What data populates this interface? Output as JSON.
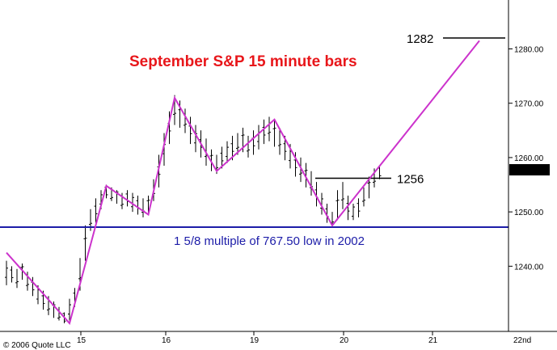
{
  "chart_data": {
    "type": "ohlc",
    "title": "September S&P 15 minute bars",
    "title_color": "#e8161a",
    "copyright": "© 2006 Quote LLC",
    "ylim": [
      1228,
      1289
    ],
    "y_ticks": [
      1240.0,
      1250.0,
      1260.0,
      1270.0,
      1280.0
    ],
    "y_tick_labels": [
      "1240.00",
      "1250.00",
      "1260.00",
      "1270.00",
      "1280.00"
    ],
    "x_tick_labels": [
      "15",
      "16",
      "19",
      "20",
      "21",
      "22nd"
    ],
    "last_price": "1257.75",
    "last_price_value": 1257.75,
    "support_line": {
      "value": 1247.2,
      "label": "1 5/8 multiple of 767.50 low in 2002",
      "color": "#1c1ca8"
    },
    "levels": [
      {
        "label": "1256",
        "value": 1256.2
      },
      {
        "label": "1282",
        "value": 1282.0
      }
    ],
    "wave_color": "#cc33cc",
    "wave_points": [
      [
        0,
        1242.5
      ],
      [
        12,
        1229.5
      ],
      [
        19,
        1254.8
      ],
      [
        27,
        1249.5
      ],
      [
        32,
        1271.0
      ],
      [
        40,
        1257.5
      ],
      [
        51,
        1267.0
      ],
      [
        62,
        1247.5
      ],
      [
        69,
        1256.0
      ],
      [
        90,
        1281.5
      ]
    ],
    "bars": [
      [
        1241.0,
        1236.5
      ],
      [
        1240.0,
        1237.0
      ],
      [
        1239.5,
        1236.0
      ],
      [
        1240.5,
        1237.5
      ],
      [
        1239.0,
        1235.5
      ],
      [
        1238.0,
        1234.5
      ],
      [
        1236.5,
        1233.0
      ],
      [
        1235.5,
        1232.0
      ],
      [
        1234.5,
        1231.0
      ],
      [
        1233.5,
        1230.5
      ],
      [
        1232.5,
        1230.0
      ],
      [
        1231.5,
        1229.5
      ],
      [
        1234.0,
        1230.0
      ],
      [
        1236.0,
        1232.5
      ],
      [
        1241.5,
        1235.5
      ],
      [
        1247.5,
        1241.0
      ],
      [
        1250.5,
        1246.5
      ],
      [
        1252.5,
        1248.0
      ],
      [
        1254.0,
        1250.5
      ],
      [
        1255.0,
        1252.5
      ],
      [
        1254.5,
        1252.0
      ],
      [
        1254.0,
        1251.5
      ],
      [
        1253.5,
        1250.5
      ],
      [
        1254.0,
        1251.0
      ],
      [
        1253.5,
        1250.0
      ],
      [
        1253.0,
        1249.5
      ],
      [
        1252.5,
        1249.0
      ],
      [
        1253.0,
        1249.5
      ],
      [
        1256.0,
        1252.0
      ],
      [
        1260.5,
        1254.5
      ],
      [
        1264.5,
        1258.5
      ],
      [
        1268.5,
        1262.5
      ],
      [
        1271.5,
        1266.0
      ],
      [
        1270.5,
        1265.5
      ],
      [
        1269.0,
        1264.5
      ],
      [
        1267.5,
        1262.5
      ],
      [
        1266.0,
        1261.0
      ],
      [
        1265.0,
        1260.0
      ],
      [
        1263.5,
        1258.5
      ],
      [
        1261.5,
        1257.5
      ],
      [
        1260.5,
        1257.0
      ],
      [
        1262.0,
        1258.0
      ],
      [
        1263.0,
        1259.0
      ],
      [
        1264.0,
        1259.5
      ],
      [
        1264.5,
        1260.5
      ],
      [
        1265.5,
        1261.0
      ],
      [
        1264.0,
        1260.0
      ],
      [
        1265.0,
        1260.5
      ],
      [
        1266.0,
        1261.5
      ],
      [
        1267.0,
        1262.5
      ],
      [
        1267.5,
        1263.0
      ],
      [
        1267.0,
        1262.0
      ],
      [
        1265.5,
        1260.5
      ],
      [
        1264.0,
        1259.5
      ],
      [
        1262.5,
        1258.0
      ],
      [
        1261.0,
        1256.5
      ],
      [
        1260.0,
        1255.5
      ],
      [
        1259.0,
        1254.5
      ],
      [
        1257.5,
        1253.0
      ],
      [
        1255.5,
        1251.0
      ],
      [
        1253.5,
        1249.5
      ],
      [
        1251.5,
        1248.0
      ],
      [
        1250.0,
        1247.5
      ],
      [
        1254.0,
        1248.5
      ],
      [
        1255.5,
        1250.5
      ],
      [
        1253.0,
        1248.5
      ],
      [
        1251.5,
        1248.5
      ],
      [
        1252.5,
        1249.0
      ],
      [
        1254.5,
        1251.0
      ],
      [
        1256.5,
        1252.5
      ],
      [
        1258.0,
        1254.5
      ],
      [
        1258.5,
        1256.0
      ]
    ]
  }
}
